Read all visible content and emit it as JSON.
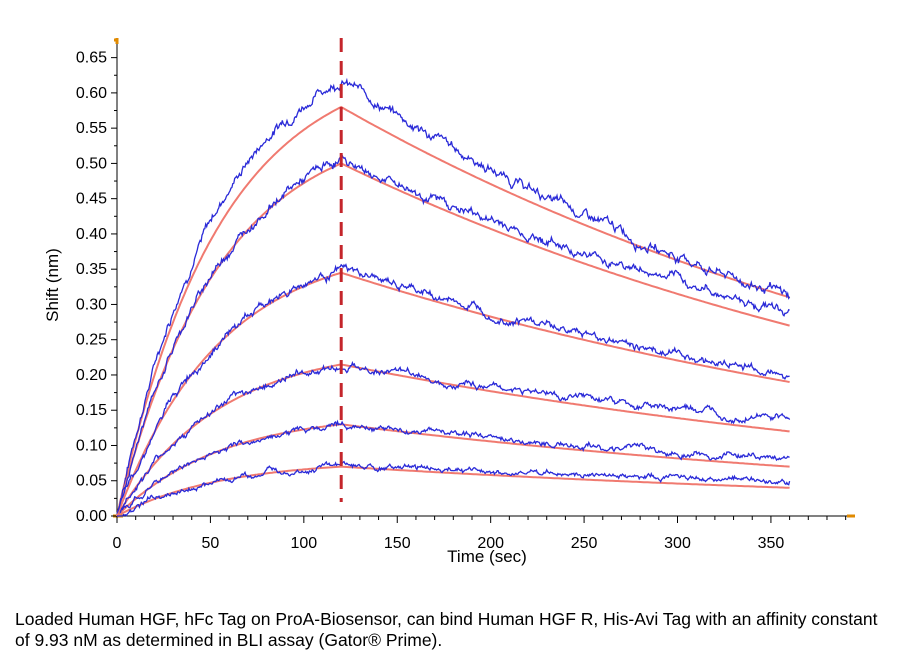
{
  "chart_data": {
    "type": "line",
    "xlabel": "Time (sec)",
    "ylabel": "Shift (nm)",
    "xlim": [
      0,
      395
    ],
    "ylim": [
      0,
      0.675
    ],
    "x_ticks": [
      0,
      50,
      100,
      150,
      200,
      250,
      300,
      350
    ],
    "y_ticks": [
      0.0,
      0.05,
      0.1,
      0.15,
      0.2,
      0.25,
      0.3,
      0.35,
      0.4,
      0.45,
      0.5,
      0.55,
      0.6,
      0.65
    ],
    "dissociation_start": 120,
    "colors": {
      "measured": "#2a2ad8",
      "fit": "#f07a70",
      "marker": "#c4252b",
      "axis_accent": "#e08a00"
    },
    "series": [
      {
        "peak_measured": 0.62,
        "peak_fit": 0.58,
        "end_measured": 0.31,
        "end_fit": 0.31
      },
      {
        "peak_measured": 0.505,
        "peak_fit": 0.5,
        "end_measured": 0.29,
        "end_fit": 0.27
      },
      {
        "peak_measured": 0.35,
        "peak_fit": 0.345,
        "end_measured": 0.2,
        "end_fit": 0.19
      },
      {
        "peak_measured": 0.215,
        "peak_fit": 0.215,
        "end_measured": 0.135,
        "end_fit": 0.12
      },
      {
        "peak_measured": 0.13,
        "peak_fit": 0.13,
        "end_measured": 0.08,
        "end_fit": 0.07
      },
      {
        "peak_measured": 0.07,
        "peak_fit": 0.07,
        "end_measured": 0.05,
        "end_fit": 0.04
      }
    ],
    "x_end": 360
  },
  "caption": "Loaded Human HGF, hFc Tag on ProA-Biosensor, can bind Human HGF R, His-Avi Tag with an affinity constant of 9.93 nM as determined in BLI assay (Gator® Prime)."
}
